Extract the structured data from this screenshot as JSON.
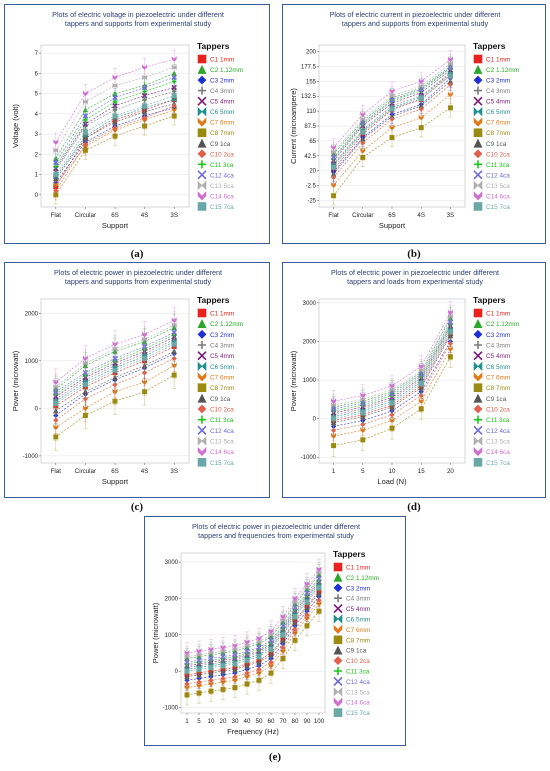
{
  "palette": {
    "frame": "#3a5ba0",
    "title": "#2c3e73",
    "grid": "#e3e3e3"
  },
  "legend_title": "Tappers",
  "tappers": [
    {
      "name": "C1 1mm",
      "color": "#e8221c",
      "marker": "square"
    },
    {
      "name": "C2 1.12mm",
      "color": "#2ba82b",
      "marker": "triangle"
    },
    {
      "name": "C3 2mm",
      "color": "#1f2fd6",
      "marker": "diamond"
    },
    {
      "name": "C4 3mm",
      "color": "#7b7b7b",
      "marker": "plus"
    },
    {
      "name": "C5 4mm",
      "color": "#7a1a7a",
      "marker": "x"
    },
    {
      "name": "C6 5mm",
      "color": "#1f8f8f",
      "marker": "bowtie"
    },
    {
      "name": "C7 6mm",
      "color": "#e07a1a",
      "marker": "chevron"
    },
    {
      "name": "C8 7mm",
      "color": "#9a8a10",
      "marker": "square"
    },
    {
      "name": "C9 1ca",
      "color": "#555555",
      "marker": "triangle"
    },
    {
      "name": "C10 2ca",
      "color": "#e0604a",
      "marker": "diamond"
    },
    {
      "name": "C11 3ca",
      "color": "#18c818",
      "marker": "plus"
    },
    {
      "name": "C12 4ca",
      "color": "#6a6ad8",
      "marker": "x"
    },
    {
      "name": "C13 5ca",
      "color": "#b0b0b0",
      "marker": "bowtie"
    },
    {
      "name": "C14 6ca",
      "color": "#d070d0",
      "marker": "chevron"
    },
    {
      "name": "C15 7ca",
      "color": "#6aa8a8",
      "marker": "square"
    }
  ],
  "chart_data": [
    {
      "id": "a",
      "caption": "(a)",
      "type": "line",
      "title": "Plots of electric voltage in piezoelectric under different tappers and supports from experimental study",
      "xlabel": "Support",
      "ylabel": "Voltage (volt)",
      "categories": [
        "Flat",
        "Circular",
        "6S",
        "4S",
        "3S"
      ],
      "ylim": [
        -0.6,
        7.4
      ],
      "yticks": [
        "0",
        "1",
        "2",
        "3",
        "4",
        "5",
        "6",
        "7"
      ],
      "series": [
        {
          "name": "C1 1mm",
          "values": [
            0.4,
            2.8,
            3.7,
            4.2,
            4.7
          ]
        },
        {
          "name": "C2 1.12mm",
          "values": [
            1.8,
            4.2,
            5.0,
            5.4,
            6.0
          ]
        },
        {
          "name": "C3 2mm",
          "values": [
            0.6,
            2.6,
            3.4,
            3.9,
            4.3
          ]
        },
        {
          "name": "C4 3mm",
          "values": [
            1.2,
            3.4,
            4.2,
            4.7,
            5.1
          ]
        },
        {
          "name": "C5 4mm",
          "values": [
            1.3,
            3.5,
            4.4,
            4.9,
            5.3
          ]
        },
        {
          "name": "C6 5mm",
          "values": [
            0.9,
            2.9,
            3.8,
            4.3,
            4.7
          ]
        },
        {
          "name": "C7 6mm",
          "values": [
            0.5,
            2.4,
            3.2,
            3.7,
            4.2
          ]
        },
        {
          "name": "C8 7mm",
          "values": [
            0.0,
            2.2,
            2.9,
            3.4,
            3.9
          ]
        },
        {
          "name": "C9 1ca",
          "values": [
            0.8,
            2.8,
            3.6,
            4.1,
            4.5
          ]
        },
        {
          "name": "C10 2ca",
          "values": [
            0.2,
            2.5,
            3.3,
            3.8,
            4.4
          ]
        },
        {
          "name": "C11 3ca",
          "values": [
            1.4,
            3.7,
            4.6,
            5.1,
            5.6
          ]
        },
        {
          "name": "C12 4ca",
          "values": [
            1.6,
            3.9,
            4.8,
            5.3,
            5.8
          ]
        },
        {
          "name": "C13 5ca",
          "values": [
            2.2,
            4.6,
            5.4,
            5.8,
            6.3
          ]
        },
        {
          "name": "C14 6ca",
          "values": [
            2.6,
            5.0,
            5.8,
            6.3,
            6.7
          ]
        },
        {
          "name": "C15 7ca",
          "values": [
            1.0,
            3.1,
            3.9,
            4.4,
            4.9
          ]
        }
      ],
      "err": 0.45
    },
    {
      "id": "b",
      "caption": "(b)",
      "type": "line",
      "title": "Plots of electric current in piezoelectric under different tappers and supports from experimental study",
      "xlabel": "Support",
      "ylabel": "Current (microampere)",
      "categories": [
        "Flat",
        "Circular",
        "6S",
        "4S",
        "3S"
      ],
      "ylim": [
        -35,
        210
      ],
      "yticks": [
        "-25",
        "-2.5",
        "20",
        "42.5",
        "65",
        "87.5",
        "110",
        "132.5",
        "155",
        "177.5",
        "200"
      ],
      "ytick_values": [
        -25,
        -2.5,
        20,
        42.5,
        65,
        87.5,
        110,
        132.5,
        155,
        177.5,
        200
      ],
      "series": [
        {
          "name": "C1 1mm",
          "values": [
            22,
            75,
            112,
            128,
            165
          ]
        },
        {
          "name": "C2 1.12mm",
          "values": [
            45,
            95,
            130,
            145,
            178
          ]
        },
        {
          "name": "C3 2mm",
          "values": [
            18,
            70,
            105,
            120,
            160
          ]
        },
        {
          "name": "C4 3mm",
          "values": [
            30,
            82,
            118,
            133,
            168
          ]
        },
        {
          "name": "C5 4mm",
          "values": [
            35,
            88,
            122,
            138,
            172
          ]
        },
        {
          "name": "C6 5mm",
          "values": [
            28,
            80,
            115,
            131,
            167
          ]
        },
        {
          "name": "C7 6mm",
          "values": [
            -2,
            50,
            85,
            100,
            135
          ]
        },
        {
          "name": "C8 7mm",
          "values": [
            -18,
            40,
            70,
            85,
            115
          ]
        },
        {
          "name": "C9 1ca",
          "values": [
            15,
            68,
            102,
            118,
            155
          ]
        },
        {
          "name": "C10 2ca",
          "values": [
            10,
            62,
            98,
            113,
            150
          ]
        },
        {
          "name": "C11 3ca",
          "values": [
            38,
            90,
            125,
            141,
            175
          ]
        },
        {
          "name": "C12 4ca",
          "values": [
            40,
            92,
            127,
            143,
            176
          ]
        },
        {
          "name": "C13 5ca",
          "values": [
            48,
            98,
            133,
            148,
            182
          ]
        },
        {
          "name": "C14 6ca",
          "values": [
            55,
            105,
            140,
            155,
            188
          ]
        },
        {
          "name": "C15 7ca",
          "values": [
            25,
            78,
            113,
            129,
            163
          ]
        }
      ],
      "err": 14
    },
    {
      "id": "c",
      "caption": "(c)",
      "type": "line",
      "title": "Plots of electric power in piezoelectric under different tappers and supports from experimental study",
      "xlabel": "Support",
      "ylabel": "Power (microwatt)",
      "categories": [
        "Flat",
        "Circular",
        "6S",
        "4S",
        "3S"
      ],
      "ylim": [
        -1150,
        2300
      ],
      "yticks": [
        "-1000",
        "0",
        "1000",
        "2000"
      ],
      "ytick_values": [
        -1000,
        0,
        1000,
        2000
      ],
      "series": [
        {
          "name": "C1 1mm",
          "values": [
            50,
            450,
            750,
            1000,
            1300
          ]
        },
        {
          "name": "C2 1.12mm",
          "values": [
            400,
            900,
            1200,
            1400,
            1700
          ]
        },
        {
          "name": "C3 2mm",
          "values": [
            -150,
            300,
            600,
            850,
            1150
          ]
        },
        {
          "name": "C4 3mm",
          "values": [
            200,
            600,
            900,
            1150,
            1450
          ]
        },
        {
          "name": "C5 4mm",
          "values": [
            250,
            650,
            950,
            1200,
            1500
          ]
        },
        {
          "name": "C6 5mm",
          "values": [
            150,
            550,
            850,
            1100,
            1400
          ]
        },
        {
          "name": "C7 6mm",
          "values": [
            -400,
            0,
            350,
            550,
            900
          ]
        },
        {
          "name": "C8 7mm",
          "values": [
            -600,
            -150,
            150,
            350,
            700
          ]
        },
        {
          "name": "C9 1ca",
          "values": [
            -50,
            350,
            650,
            900,
            1200
          ]
        },
        {
          "name": "C10 2ca",
          "values": [
            -250,
            200,
            500,
            750,
            1050
          ]
        },
        {
          "name": "C11 3ca",
          "values": [
            300,
            700,
            1000,
            1250,
            1550
          ]
        },
        {
          "name": "C12 4ca",
          "values": [
            350,
            750,
            1050,
            1300,
            1600
          ]
        },
        {
          "name": "C13 5ca",
          "values": [
            450,
            950,
            1250,
            1450,
            1750
          ]
        },
        {
          "name": "C14 6ca",
          "values": [
            550,
            1050,
            1350,
            1550,
            1850
          ]
        },
        {
          "name": "C15 7ca",
          "values": [
            100,
            500,
            800,
            1050,
            1350
          ]
        }
      ],
      "err": 280
    },
    {
      "id": "d",
      "caption": "(d)",
      "type": "line",
      "title": "Plots of electric power in piezoelectric under different tappers and loads from experimental study",
      "xlabel": "Load (N)",
      "ylabel": "Power (microwatt)",
      "categories": [
        "1",
        "5",
        "10",
        "15",
        "20"
      ],
      "ylim": [
        -1150,
        3100
      ],
      "yticks": [
        "-1000",
        "0",
        "1000",
        "2000",
        "3000"
      ],
      "ytick_values": [
        -1000,
        0,
        1000,
        2000,
        3000
      ],
      "series": [
        {
          "name": "C1 1mm",
          "values": [
            -50,
            100,
            350,
            850,
            2200
          ]
        },
        {
          "name": "C2 1.12mm",
          "values": [
            300,
            450,
            700,
            1200,
            2600
          ]
        },
        {
          "name": "C3 2mm",
          "values": [
            -200,
            -50,
            200,
            700,
            2000
          ]
        },
        {
          "name": "C4 3mm",
          "values": [
            100,
            250,
            500,
            1000,
            2350
          ]
        },
        {
          "name": "C5 4mm",
          "values": [
            150,
            300,
            550,
            1050,
            2400
          ]
        },
        {
          "name": "C6 5mm",
          "values": [
            50,
            200,
            450,
            950,
            2300
          ]
        },
        {
          "name": "C7 6mm",
          "values": [
            -450,
            -300,
            -50,
            450,
            1800
          ]
        },
        {
          "name": "C8 7mm",
          "values": [
            -700,
            -550,
            -250,
            250,
            1600
          ]
        },
        {
          "name": "C9 1ca",
          "values": [
            -100,
            50,
            300,
            800,
            2150
          ]
        },
        {
          "name": "C10 2ca",
          "values": [
            -300,
            -150,
            100,
            600,
            1950
          ]
        },
        {
          "name": "C11 3ca",
          "values": [
            200,
            350,
            600,
            1100,
            2450
          ]
        },
        {
          "name": "C12 4ca",
          "values": [
            250,
            400,
            650,
            1150,
            2500
          ]
        },
        {
          "name": "C13 5ca",
          "values": [
            350,
            500,
            750,
            1250,
            2650
          ]
        },
        {
          "name": "C14 6ca",
          "values": [
            450,
            600,
            850,
            1350,
            2750
          ]
        },
        {
          "name": "C15 7ca",
          "values": [
            0,
            150,
            400,
            900,
            2250
          ]
        }
      ],
      "err": 280
    },
    {
      "id": "e",
      "caption": "(e)",
      "type": "line",
      "title": "Plots of electric power in piezoelectric under different tappers and frequencies from experimental study",
      "xlabel": "Frequency (Hz)",
      "ylabel": "Power (microwatt)",
      "categories": [
        "1",
        "5",
        "10",
        "20",
        "30",
        "40",
        "50",
        "60",
        "70",
        "80",
        "90",
        "100"
      ],
      "ylim": [
        -1150,
        3250
      ],
      "yticks": [
        "-1000",
        "0",
        "1000",
        "2000",
        "3000"
      ],
      "ytick_values": [
        -1000,
        0,
        1000,
        2000,
        3000
      ],
      "series": [
        {
          "name": "C1 1mm",
          "values": [
            -100,
            -50,
            0,
            50,
            100,
            200,
            300,
            500,
            900,
            1400,
            1800,
            2200
          ]
        },
        {
          "name": "C2 1.12mm",
          "values": [
            350,
            400,
            450,
            500,
            550,
            650,
            750,
            950,
            1350,
            1850,
            2250,
            2650
          ]
        },
        {
          "name": "C3 2mm",
          "values": [
            -250,
            -200,
            -150,
            -100,
            -50,
            50,
            150,
            350,
            750,
            1250,
            1650,
            2050
          ]
        },
        {
          "name": "C4 3mm",
          "values": [
            100,
            150,
            200,
            250,
            300,
            400,
            500,
            700,
            1100,
            1600,
            2000,
            2400
          ]
        },
        {
          "name": "C5 4mm",
          "values": [
            150,
            200,
            250,
            300,
            350,
            450,
            550,
            750,
            1150,
            1650,
            2050,
            2450
          ]
        },
        {
          "name": "C6 5mm",
          "values": [
            50,
            100,
            150,
            200,
            250,
            350,
            450,
            650,
            1050,
            1550,
            1950,
            2350
          ]
        },
        {
          "name": "C7 6mm",
          "values": [
            -450,
            -400,
            -350,
            -300,
            -250,
            -150,
            -50,
            150,
            550,
            1050,
            1450,
            1850
          ]
        },
        {
          "name": "C8 7mm",
          "values": [
            -650,
            -600,
            -550,
            -500,
            -450,
            -350,
            -250,
            -50,
            350,
            850,
            1250,
            1650
          ]
        },
        {
          "name": "C9 1ca",
          "values": [
            -150,
            -100,
            -50,
            0,
            50,
            150,
            250,
            450,
            850,
            1350,
            1750,
            2150
          ]
        },
        {
          "name": "C10 2ca",
          "values": [
            -350,
            -300,
            -250,
            -200,
            -150,
            -50,
            50,
            250,
            650,
            1150,
            1550,
            1950
          ]
        },
        {
          "name": "C11 3ca",
          "values": [
            200,
            250,
            300,
            350,
            400,
            500,
            600,
            800,
            1200,
            1700,
            2100,
            2500
          ]
        },
        {
          "name": "C12 4ca",
          "values": [
            250,
            300,
            350,
            400,
            450,
            550,
            650,
            850,
            1250,
            1750,
            2150,
            2550
          ]
        },
        {
          "name": "C13 5ca",
          "values": [
            400,
            450,
            500,
            550,
            600,
            700,
            800,
            1000,
            1400,
            1900,
            2300,
            2700
          ]
        },
        {
          "name": "C14 6ca",
          "values": [
            500,
            550,
            600,
            650,
            700,
            800,
            900,
            1100,
            1500,
            2000,
            2400,
            2800
          ]
        },
        {
          "name": "C15 7ca",
          "values": [
            0,
            50,
            100,
            150,
            200,
            300,
            400,
            600,
            1000,
            1500,
            1900,
            2300
          ]
        }
      ],
      "err": 280
    }
  ]
}
